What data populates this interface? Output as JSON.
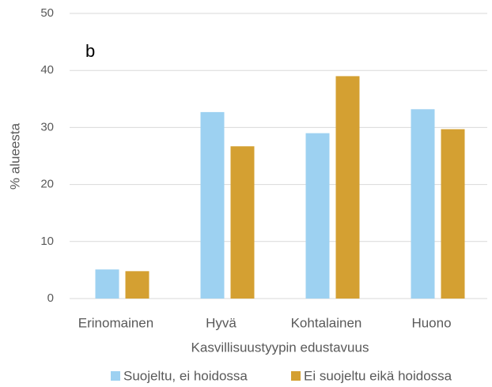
{
  "chart_data": {
    "type": "bar",
    "annotation": "b",
    "ylabel": "% alueesta",
    "xlabel": "Kasvillisuustyypin edustavuus",
    "categories": [
      "Erinomainen",
      "Hyvä",
      "Kohtalainen",
      "Huono"
    ],
    "series": [
      {
        "name": "Suojeltu, ei hoidossa",
        "color": "#9dd1f1",
        "values": [
          5.1,
          32.7,
          29.0,
          33.2
        ]
      },
      {
        "name": "Ei suojeltu eikä hoidossa",
        "color": "#d4a032",
        "values": [
          4.8,
          26.7,
          39.0,
          29.7
        ]
      }
    ],
    "ylim": [
      0,
      50
    ],
    "yticks": [
      0,
      10,
      20,
      30,
      40,
      50
    ],
    "grid": true,
    "legend": "bottom"
  }
}
